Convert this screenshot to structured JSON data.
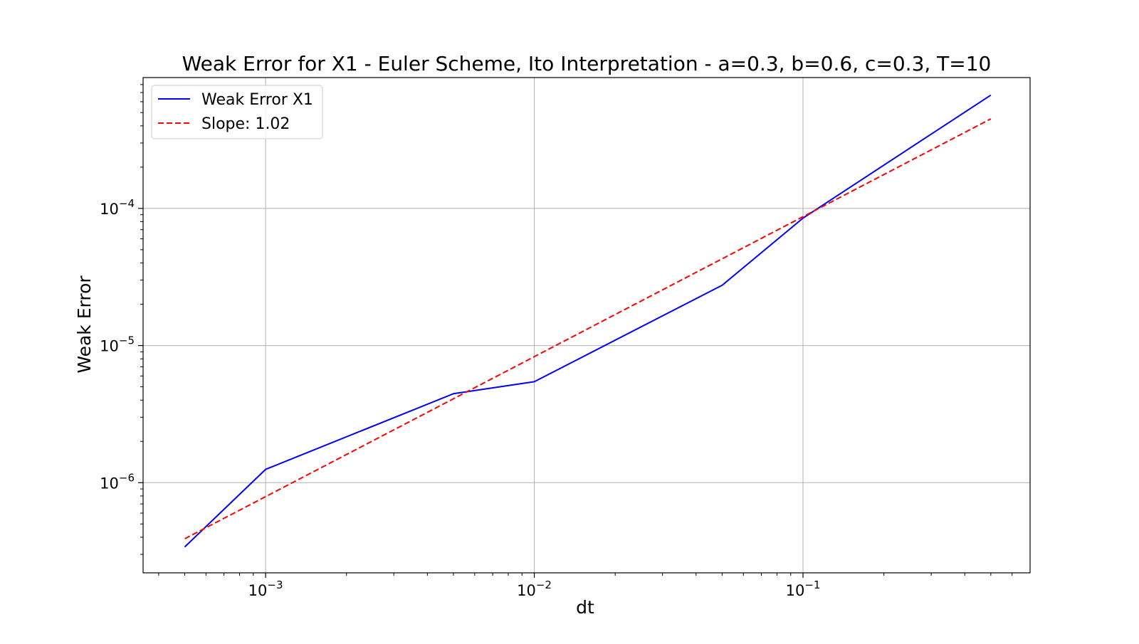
{
  "chart_data": {
    "type": "line",
    "title": "Weak Error for X1 - Euler Scheme, Ito Interpretation - a=0.3, b=0.6, c=0.3, T=10",
    "xlabel": "dt",
    "ylabel": "Weak Error",
    "xscale": "log",
    "yscale": "log",
    "xlim": [
      0.00035,
      0.7
    ],
    "ylim": [
      2.2e-07,
      0.0009
    ],
    "grid": true,
    "legend_position": "upper-left",
    "x_ticks": [
      {
        "value": 0.001,
        "base": "10",
        "exp": "−3"
      },
      {
        "value": 0.01,
        "base": "10",
        "exp": "−2"
      },
      {
        "value": 0.1,
        "base": "10",
        "exp": "−1"
      }
    ],
    "y_ticks": [
      {
        "value": 0.0001,
        "base": "10",
        "exp": "−4"
      },
      {
        "value": 1e-05,
        "base": "10",
        "exp": "−5"
      },
      {
        "value": 1e-06,
        "base": "10",
        "exp": "−6"
      }
    ],
    "series": [
      {
        "name": "Weak Error X1",
        "color": "#0000ff",
        "style": "solid",
        "x": [
          0.0005,
          0.001,
          0.005,
          0.01,
          0.05,
          0.1,
          0.5
        ],
        "y": [
          3.4e-07,
          1.25e-06,
          4.45e-06,
          5.45e-06,
          2.75e-05,
          8.5e-05,
          0.00067
        ]
      },
      {
        "name": "Slope: 1.02",
        "color": "#ff0000",
        "style": "dashed",
        "x": [
          0.0005,
          0.5
        ],
        "y": [
          3.9e-07,
          0.00045
        ]
      }
    ]
  }
}
